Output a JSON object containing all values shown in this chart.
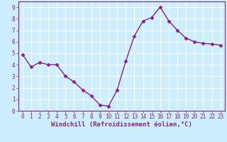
{
  "x": [
    0,
    1,
    2,
    3,
    4,
    5,
    6,
    7,
    8,
    9,
    10,
    11,
    12,
    13,
    14,
    15,
    16,
    17,
    18,
    19,
    20,
    21,
    22,
    23
  ],
  "y": [
    4.9,
    3.8,
    4.2,
    4.0,
    4.0,
    3.0,
    2.5,
    1.8,
    1.3,
    0.5,
    0.4,
    1.8,
    4.3,
    6.5,
    7.8,
    8.1,
    9.0,
    7.8,
    7.0,
    6.3,
    6.0,
    5.85,
    5.8,
    5.7
  ],
  "line_color": "#882288",
  "marker": "D",
  "marker_size": 2.5,
  "bg_color": "#cceeff",
  "plot_bg_color": "#cceeff",
  "grid_color": "#aadddd",
  "xlabel": "Windchill (Refroidissement éolien,°C)",
  "xlim": [
    -0.5,
    23.5
  ],
  "ylim": [
    0,
    9.5
  ],
  "yticks": [
    0,
    1,
    2,
    3,
    4,
    5,
    6,
    7,
    8,
    9
  ],
  "xticks": [
    0,
    1,
    2,
    3,
    4,
    5,
    6,
    7,
    8,
    9,
    10,
    11,
    12,
    13,
    14,
    15,
    16,
    17,
    18,
    19,
    20,
    21,
    22,
    23
  ],
  "label_color": "#882288",
  "tick_color": "#882288",
  "spine_color": "#882288",
  "xlabel_fontsize": 6.5,
  "tick_fontsize": 5.5,
  "linewidth": 1.0
}
